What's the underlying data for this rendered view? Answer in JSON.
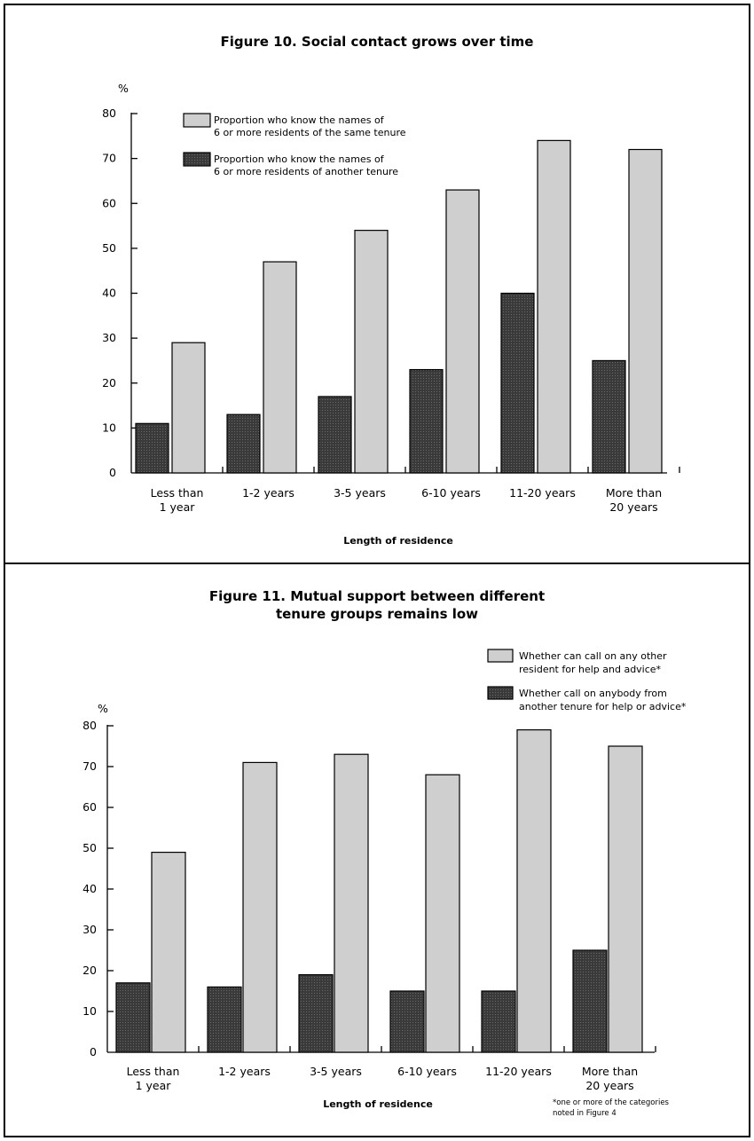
{
  "chart_data": [
    {
      "type": "bar",
      "title": "Figure 10. Social contact grows over time",
      "ylabel": "%",
      "xlabel": "Length of residence",
      "ylim": [
        0,
        80
      ],
      "yticks": [
        0,
        10,
        20,
        30,
        40,
        50,
        60,
        70,
        80
      ],
      "categories": [
        [
          "Less than",
          "1 year"
        ],
        [
          "1-2 years"
        ],
        [
          "3-5 years"
        ],
        [
          "6-10 years"
        ],
        [
          "11-20 years"
        ],
        [
          "More than",
          "20 years"
        ]
      ],
      "series": [
        {
          "name": "Proportion who know the names of 6 or more residents of another tenure",
          "legend_lines": [
            "Proportion who know the names of",
            "6 or more residents of another tenure"
          ],
          "color": "#3a3a3a",
          "values": [
            11,
            13,
            17,
            23,
            40,
            25
          ]
        },
        {
          "name": "Proportion who know the names of 6 or more residents of the same tenure",
          "legend_lines": [
            "Proportion who know the names of",
            "6 or more residents of the same tenure"
          ],
          "color": "#cfcfcf",
          "values": [
            29,
            47,
            54,
            63,
            74,
            72
          ]
        }
      ],
      "legend_order": [
        1,
        0
      ],
      "legend_position": "top-left",
      "grid": false
    },
    {
      "type": "bar",
      "title": "Figure 11. Mutual support between different tenure groups remains low",
      "title_lines": [
        "Figure 11. Mutual support between different",
        "tenure groups remains low"
      ],
      "ylabel": "%",
      "xlabel": "Length of residence",
      "ylim": [
        0,
        80
      ],
      "yticks": [
        0,
        10,
        20,
        30,
        40,
        50,
        60,
        70,
        80
      ],
      "categories": [
        [
          "Less than",
          "1 year"
        ],
        [
          "1-2 years"
        ],
        [
          "3-5 years"
        ],
        [
          "6-10 years"
        ],
        [
          "11-20 years"
        ],
        [
          "More than",
          "20 years"
        ]
      ],
      "series": [
        {
          "name": "Whether call on anybody from another tenure for help or advice*",
          "legend_lines": [
            "Whether call on anybody from",
            "another tenure for help or advice*"
          ],
          "color": "#3a3a3a",
          "values": [
            17,
            16,
            19,
            15,
            15,
            25
          ]
        },
        {
          "name": "Whether can call on any other resident for help and advice*",
          "legend_lines": [
            "Whether can call on any other",
            "resident for help and advice*"
          ],
          "color": "#cfcfcf",
          "values": [
            49,
            71,
            73,
            68,
            79,
            75
          ]
        }
      ],
      "legend_order": [
        1,
        0
      ],
      "legend_position": "top-right",
      "grid": false,
      "footnote_lines": [
        "*one or more of the categories",
        "noted in Figure 4"
      ]
    }
  ]
}
